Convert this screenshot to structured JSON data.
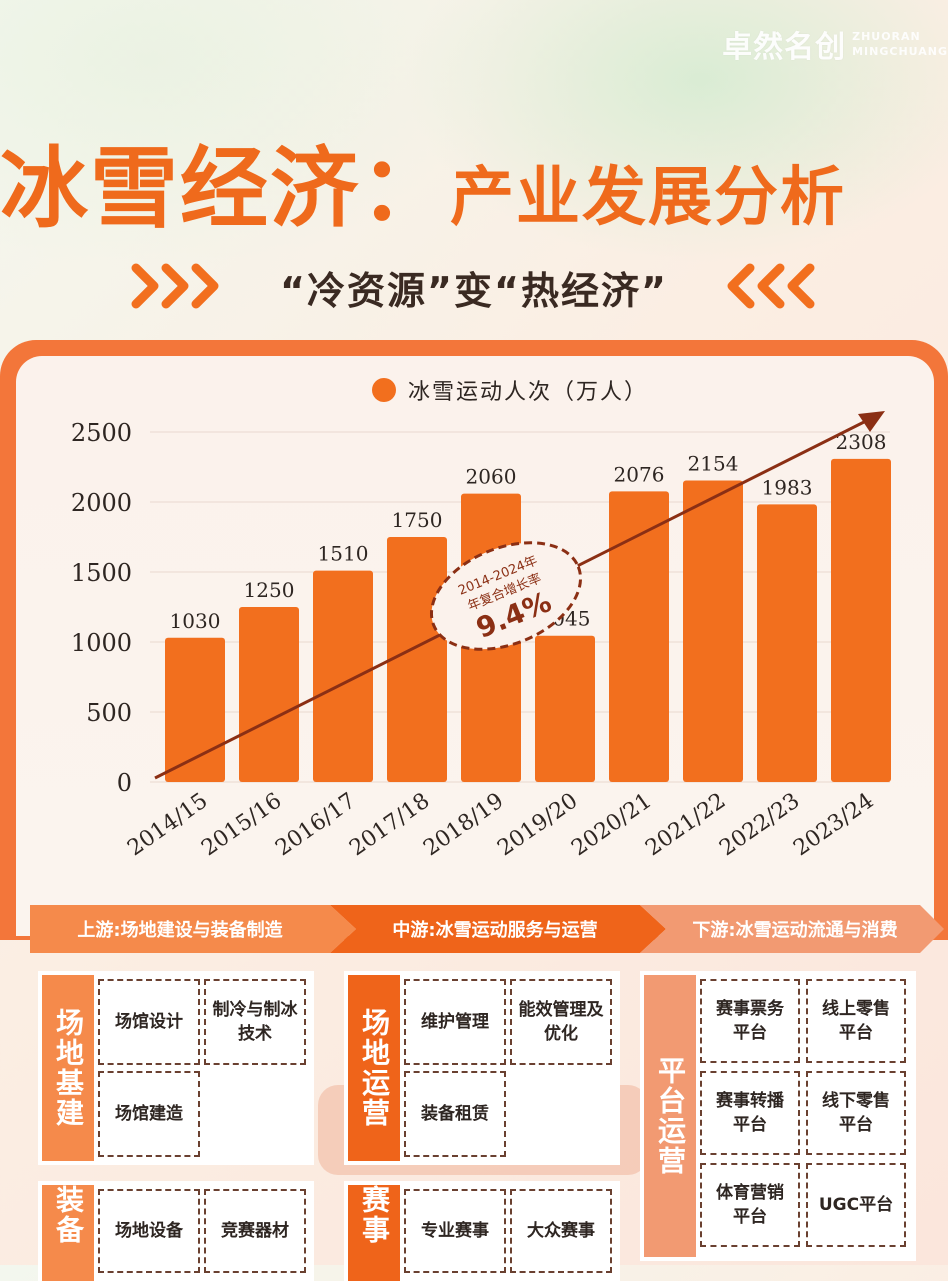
{
  "brand": {
    "name_cn": "卓然名创",
    "name_en_1": "ZHUORAN",
    "name_en_2": "MINGCHUANG"
  },
  "header": {
    "title_main": "冰雪经济：",
    "title_sub": "产业发展分析",
    "subtitle": "“冷资源”变“热经济”"
  },
  "colors": {
    "accent": "#f26f1e",
    "dark_arrow": "#8b2f14",
    "panel": "#f3763a"
  },
  "chart_data": {
    "type": "bar",
    "legend": "冰雪运动人次（万人）",
    "categories": [
      "2014/15",
      "2015/16",
      "2016/17",
      "2017/18",
      "2018/19",
      "2019/20",
      "2020/21",
      "2021/22",
      "2022/23",
      "2023/24"
    ],
    "values": [
      1030,
      1250,
      1510,
      1750,
      2060,
      1045,
      2076,
      2154,
      1983,
      2308
    ],
    "yticks": [
      0,
      500,
      1000,
      1500,
      2000,
      2500
    ],
    "ylim": [
      0,
      2500
    ],
    "annotation": {
      "line1": "2014-2024年",
      "line2": "年复合增长率",
      "value": "9.4%"
    },
    "grid": true,
    "legend_position": "top-center"
  },
  "value_chain": {
    "upstream": {
      "label": "上游:场地建设与装备制造",
      "groups": [
        {
          "name": "场地基建",
          "items": [
            "场馆设计",
            "制冷与制冰\n技术",
            "场馆建造"
          ]
        },
        {
          "name": "装备",
          "items": [
            "场地设备",
            "竞赛器材"
          ]
        }
      ]
    },
    "midstream": {
      "label": "中游:冰雪运动服务与运营",
      "groups": [
        {
          "name": "场地运营",
          "items": [
            "维护管理",
            "能效管理及\n优化",
            "装备租赁"
          ]
        },
        {
          "name": "赛事",
          "items": [
            "专业赛事",
            "大众赛事"
          ]
        }
      ]
    },
    "downstream": {
      "label": "下游:冰雪运动流通与消费",
      "groups": [
        {
          "name": "平台运营",
          "items": [
            "赛事票务\n平台",
            "线上零售\n平台",
            "赛事转播\n平台",
            "线下零售\n平台",
            "体育营销\n平台",
            "UGC平台"
          ]
        }
      ]
    }
  }
}
